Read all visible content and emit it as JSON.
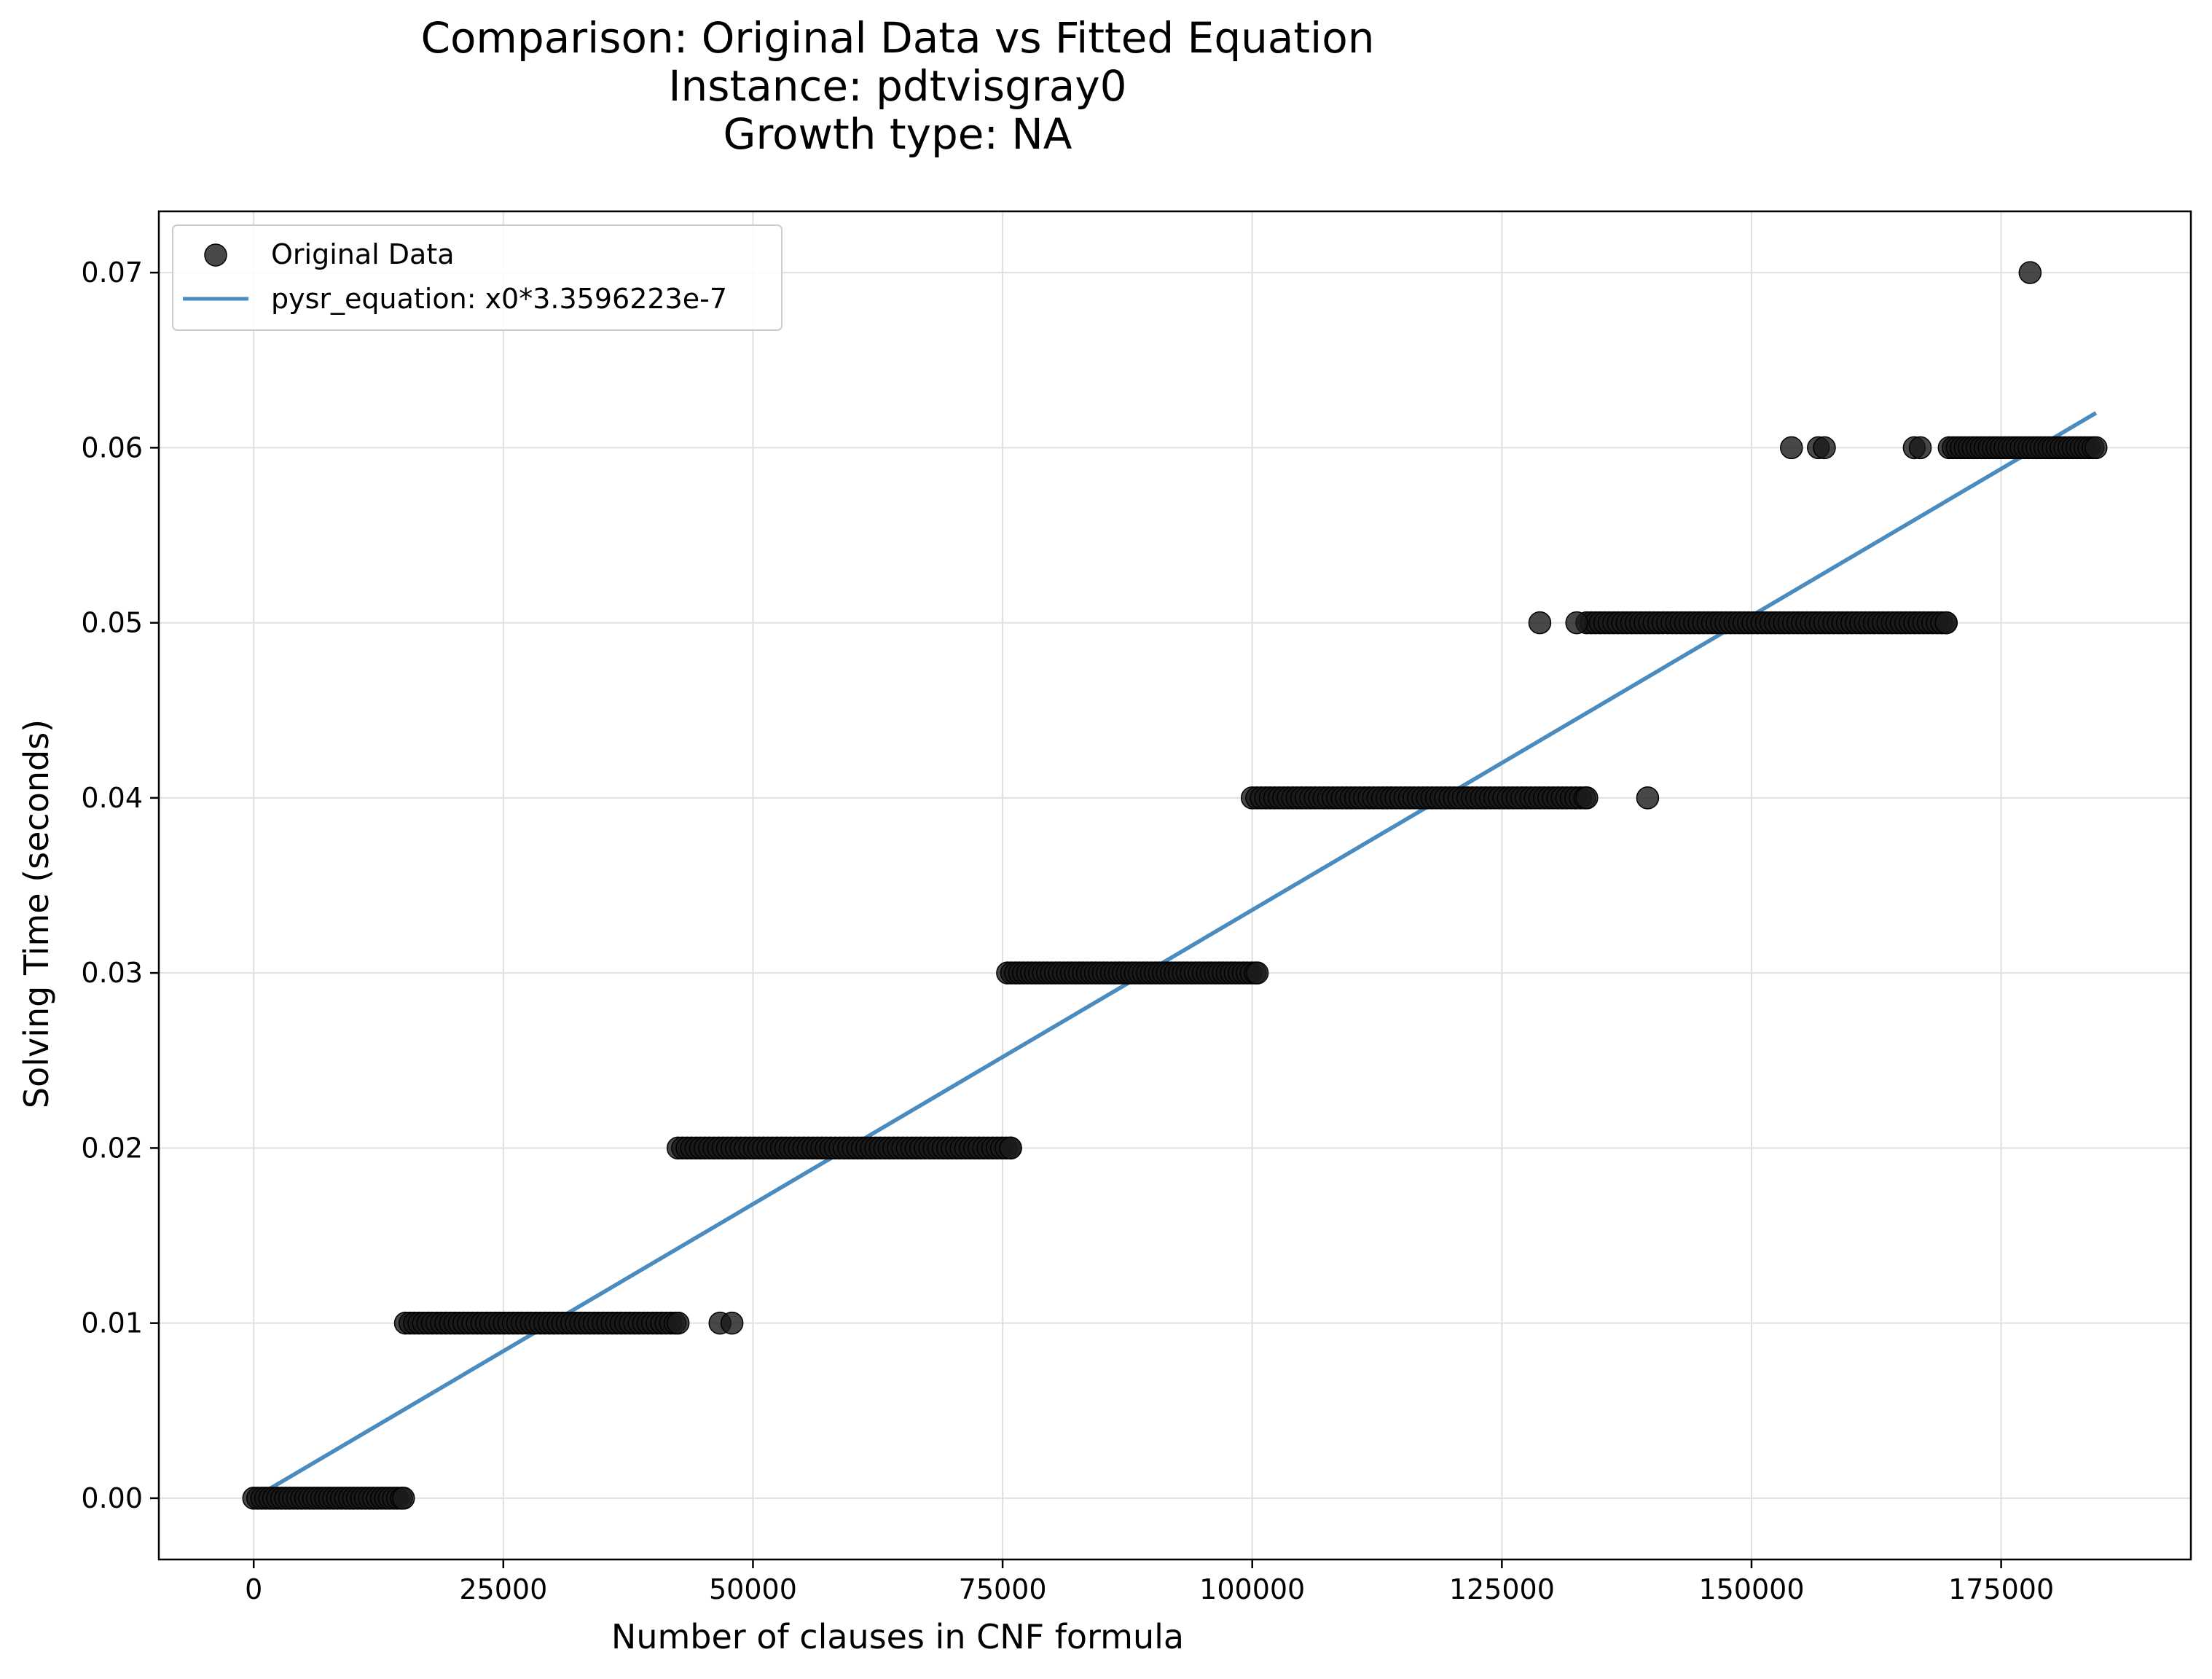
{
  "chart_data": {
    "type": "scatter",
    "title_lines": [
      "Comparison: Original Data vs Fitted Equation",
      "Instance: pdtvisgray0",
      "Growth type: NA"
    ],
    "xlabel": "Number of clauses in CNF formula",
    "ylabel": "Solving Time (seconds)",
    "xlim": [
      -9500,
      194000
    ],
    "ylim": [
      -0.0035,
      0.0735
    ],
    "xticks": [
      0,
      25000,
      50000,
      75000,
      100000,
      125000,
      150000,
      175000
    ],
    "xtick_labels": [
      "0",
      "25000",
      "50000",
      "75000",
      "100000",
      "125000",
      "150000",
      "175000"
    ],
    "yticks": [
      0.0,
      0.01,
      0.02,
      0.03,
      0.04,
      0.05,
      0.06,
      0.07
    ],
    "ytick_labels": [
      "0.00",
      "0.01",
      "0.02",
      "0.03",
      "0.04",
      "0.05",
      "0.06",
      "0.07"
    ],
    "grid": true,
    "legend_position": "top-left",
    "legend": [
      {
        "label": "Original Data",
        "kind": "marker"
      },
      {
        "label": "pysr_equation: x0*3.3596223e-7",
        "kind": "line"
      }
    ],
    "colors": {
      "points": "#1a1a1a",
      "line": "#4a8cc0",
      "grid": "#e0e0e0"
    },
    "scatter_series": {
      "name": "Original Data",
      "segments": [
        {
          "y": 0.0,
          "x_start": 0,
          "x_end": 15000,
          "step": 400
        },
        {
          "y": 0.01,
          "x_start": 15200,
          "x_end": 42500,
          "step": 450
        },
        {
          "y": 0.02,
          "x_start": 42500,
          "x_end": 75800,
          "step": 450
        },
        {
          "y": 0.03,
          "x_start": 75500,
          "x_end": 100500,
          "step": 400
        },
        {
          "y": 0.04,
          "x_start": 100000,
          "x_end": 133500,
          "step": 450
        },
        {
          "y": 0.05,
          "x_start": 133500,
          "x_end": 169500,
          "step": 450
        },
        {
          "y": 0.06,
          "x_start": 169800,
          "x_end": 184500,
          "step": 400
        }
      ],
      "points": [
        {
          "x": 46700,
          "y": 0.01
        },
        {
          "x": 47900,
          "y": 0.01
        },
        {
          "x": 128800,
          "y": 0.05
        },
        {
          "x": 132500,
          "y": 0.05
        },
        {
          "x": 139600,
          "y": 0.04
        },
        {
          "x": 154000,
          "y": 0.06
        },
        {
          "x": 156700,
          "y": 0.06
        },
        {
          "x": 157300,
          "y": 0.06
        },
        {
          "x": 166300,
          "y": 0.06
        },
        {
          "x": 166900,
          "y": 0.06
        },
        {
          "x": 177900,
          "y": 0.07
        }
      ]
    },
    "line_series": {
      "name": "pysr_equation: x0*3.3596223e-7",
      "coefficient": 3.3596223e-07,
      "x": [
        1000,
        184500
      ]
    }
  }
}
